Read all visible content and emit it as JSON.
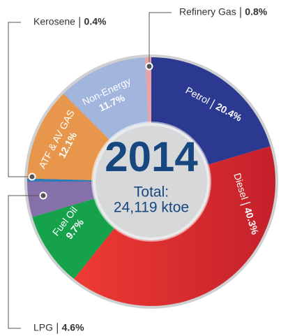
{
  "chart_data": {
    "type": "donut",
    "title": "2014",
    "subtitle": "Total:",
    "total_label": "24,119 ktoe",
    "categories": [
      "Petrol",
      "Diesel",
      "Fuel Oil",
      "LPG",
      "Kerosene",
      "ATF & AV GAS",
      "Non-Energy",
      "Refinery Gas"
    ],
    "values": [
      20.4,
      40.3,
      9.7,
      4.6,
      0.4,
      12.1,
      11.7,
      0.8
    ],
    "value_labels": [
      "20.4%",
      "40.3%",
      "9.7%",
      "4.6%",
      "0.4%",
      "12.1%",
      "11.7%",
      "0.8%"
    ],
    "colors": [
      "#2b3990",
      "#d9282e",
      "#15a24b",
      "#8670a9",
      "#2e7bb5",
      "#e8964b",
      "#a2b5dc",
      "#e9a3a6"
    ]
  }
}
